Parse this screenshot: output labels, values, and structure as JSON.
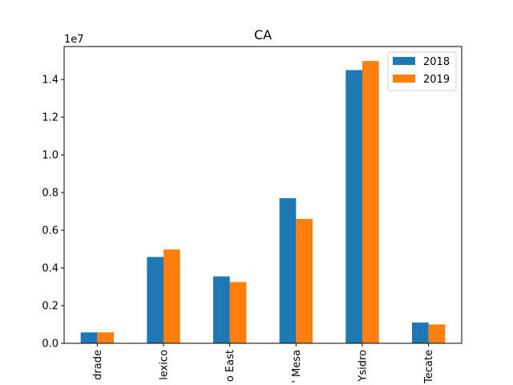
{
  "chart_data": {
    "type": "bar",
    "title": "CA",
    "xlabel": "",
    "ylabel": "",
    "scale_label": "1e7",
    "scale_factor": 10000000,
    "categories": [
      "drade",
      "lexico",
      "o East",
      "' Mesa",
      "Ysidro",
      "Tecate"
    ],
    "series": [
      {
        "name": "2018",
        "color": "#1f77b4",
        "values": [
          580000,
          4580000,
          3550000,
          7700000,
          14500000,
          1100000
        ]
      },
      {
        "name": "2019",
        "color": "#ff7f0e",
        "values": [
          580000,
          4980000,
          3250000,
          6600000,
          14980000,
          1000000
        ]
      }
    ],
    "ylim": [
      0,
      15750000
    ],
    "yticks": [
      0,
      2000000,
      4000000,
      6000000,
      8000000,
      10000000,
      12000000,
      14000000
    ],
    "ytick_labels": [
      "0.0",
      "0.2",
      "0.4",
      "0.6",
      "0.8",
      "1.0",
      "1.2",
      "1.4"
    ],
    "grid": false,
    "legend_position": "top-right"
  }
}
